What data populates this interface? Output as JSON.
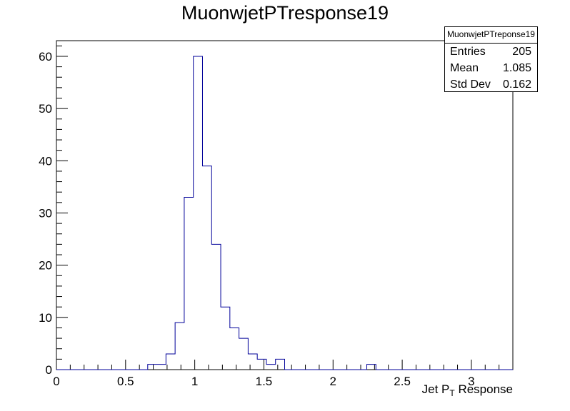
{
  "chart_data": {
    "type": "histogram",
    "title": "MuonwjetPTresponse19",
    "xlabel": "Jet P",
    "xlabel_subscript": "T",
    "xlabel_suffix": " Response",
    "ylabel": "",
    "xlim": [
      0,
      3.3
    ],
    "ylim": [
      0,
      63
    ],
    "bin_width": 0.066,
    "bin_start": 0,
    "counts": [
      0,
      0,
      0,
      0,
      0,
      0,
      0,
      0,
      0,
      0,
      1,
      1,
      3,
      9,
      33,
      60,
      39,
      24,
      12,
      8,
      6,
      3,
      2,
      1,
      2,
      0,
      0,
      0,
      0,
      0,
      0,
      0,
      0,
      0,
      1,
      0,
      0,
      0,
      0,
      0,
      0,
      0,
      0,
      0,
      0,
      0,
      0,
      0,
      0,
      0
    ],
    "x_ticks": [
      "0",
      "0.5",
      "1",
      "1.5",
      "2",
      "2.5",
      "3"
    ],
    "x_tick_values": [
      0,
      0.5,
      1,
      1.5,
      2,
      2.5,
      3
    ],
    "y_ticks": [
      "0",
      "10",
      "20",
      "30",
      "40",
      "50",
      "60"
    ],
    "y_tick_values": [
      0,
      10,
      20,
      30,
      40,
      50,
      60
    ],
    "line_color": "#000099"
  },
  "stats": {
    "title": "MuonwjetPTreponse19",
    "rows": [
      {
        "label": "Entries",
        "value": "205"
      },
      {
        "label": "Mean",
        "value": "1.085"
      },
      {
        "label": "Std Dev",
        "value": "0.162"
      }
    ]
  }
}
